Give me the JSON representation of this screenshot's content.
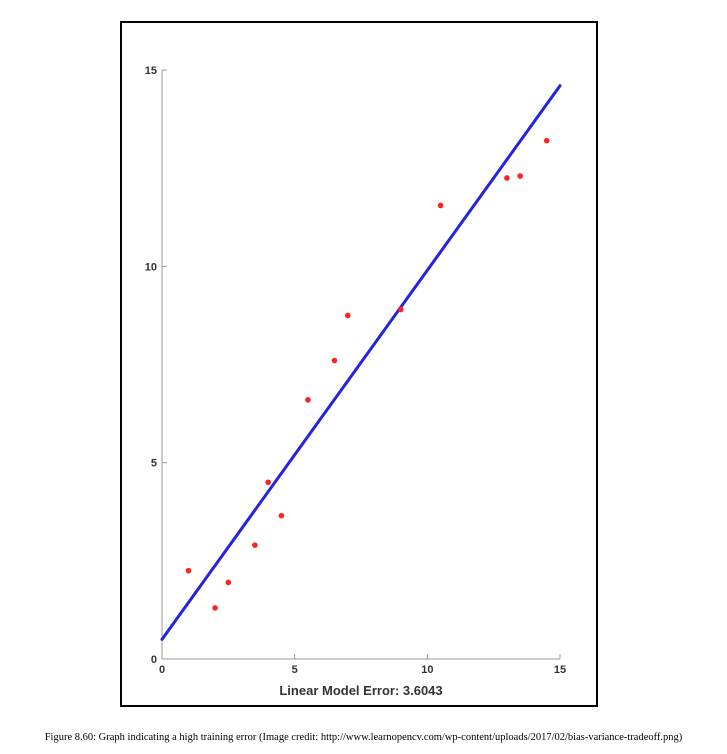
{
  "chart_data": {
    "type": "scatter",
    "title": "",
    "xlabel": "Linear Model Error:  3.6043",
    "ylabel": "",
    "xlim": [
      0,
      15
    ],
    "ylim": [
      0,
      15
    ],
    "xticks": [
      0,
      5,
      10,
      15
    ],
    "yticks": [
      0,
      5,
      10,
      15
    ],
    "x_tick_labels": [
      "0",
      "5",
      "10",
      "15"
    ],
    "y_tick_labels": [
      "0",
      "5",
      "10",
      "15"
    ],
    "grid": false,
    "points": [
      {
        "x": 1.0,
        "y": 2.25
      },
      {
        "x": 2.0,
        "y": 1.3
      },
      {
        "x": 2.5,
        "y": 1.95
      },
      {
        "x": 3.5,
        "y": 2.9
      },
      {
        "x": 4.0,
        "y": 4.5
      },
      {
        "x": 4.5,
        "y": 3.65
      },
      {
        "x": 5.5,
        "y": 6.6
      },
      {
        "x": 6.5,
        "y": 7.6
      },
      {
        "x": 7.0,
        "y": 8.75
      },
      {
        "x": 9.0,
        "y": 8.9
      },
      {
        "x": 10.5,
        "y": 11.55
      },
      {
        "x": 13.0,
        "y": 12.25
      },
      {
        "x": 13.5,
        "y": 12.3
      },
      {
        "x": 14.5,
        "y": 13.2
      }
    ],
    "fit_line": {
      "x": [
        0,
        15
      ],
      "y": [
        0.5,
        14.6
      ]
    },
    "point_color": "#ff2020",
    "line_color": "#2323e0"
  },
  "caption": "Figure 8.60: Graph indicating a high training error (Image credit: http://www.learnopencv.com/wp-content/uploads/2017/02/bias-variance-tradeoff.png)"
}
